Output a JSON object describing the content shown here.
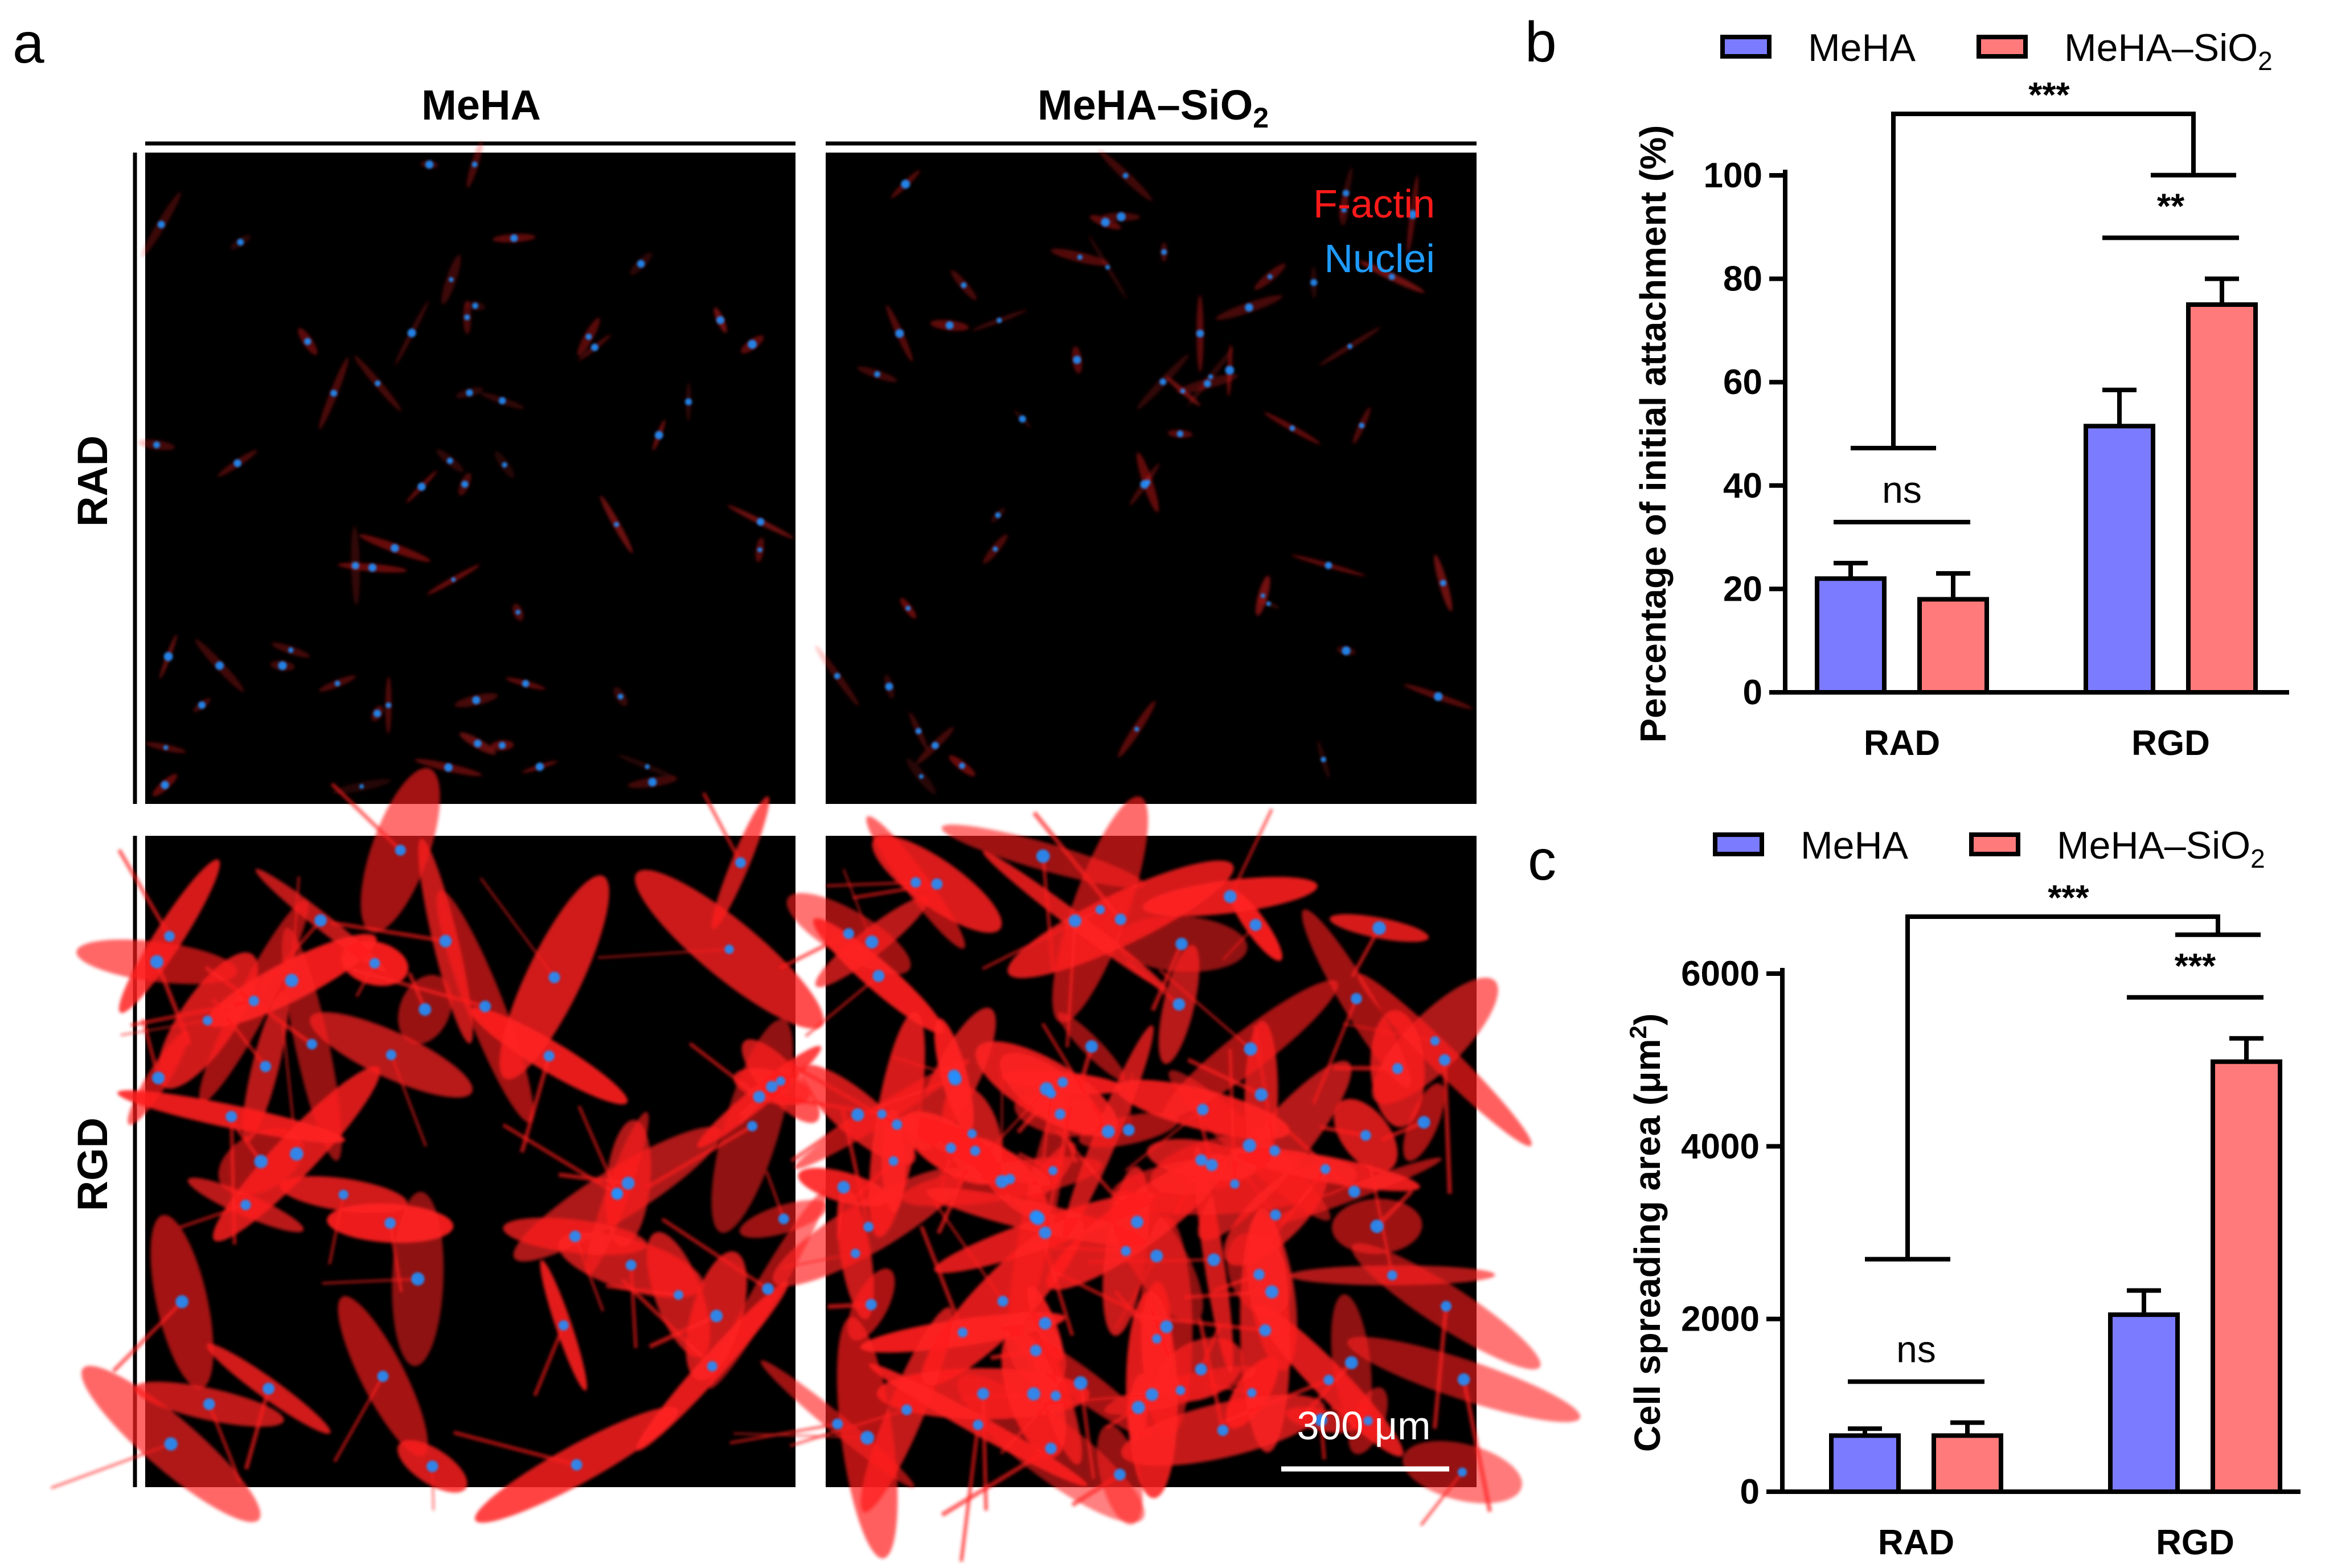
{
  "panel_a": {
    "letter": "a",
    "col_headers": [
      "MeHA",
      "MeHA–SiO2"
    ],
    "row_headers": [
      "RAD",
      "RGD"
    ],
    "stain_legend": {
      "factin": "F-actin",
      "nuclei": "Nuclei"
    },
    "scale_bar": "300 μm",
    "colors": {
      "factin": "#ff2020",
      "nuclei": "#2090ff",
      "background": "#000000"
    }
  },
  "panel_b": {
    "letter": "b"
  },
  "panel_c": {
    "letter": "c"
  },
  "chart_data": [
    {
      "panel": "b",
      "type": "bar",
      "ylabel": "Percentage of initial attachment (%)",
      "categories": [
        "RAD",
        "RGD"
      ],
      "ylim": [
        0,
        100
      ],
      "yticks": [
        0,
        20,
        40,
        60,
        80,
        100
      ],
      "series": [
        {
          "name": "MeHA",
          "color": "#7b7bff",
          "values": [
            22,
            51.5
          ],
          "errors": [
            3,
            7
          ]
        },
        {
          "name": "MeHA–SiO2",
          "color": "#ff7b7b",
          "values": [
            18,
            75
          ],
          "errors": [
            5,
            5
          ]
        }
      ],
      "legend": [
        "MeHA",
        "MeHA–SiO2"
      ],
      "legend_position": "top",
      "annotations": [
        "ns",
        "**",
        "***"
      ]
    },
    {
      "panel": "c",
      "type": "bar",
      "ylabel": "Cell spreading area (μm2)",
      "categories": [
        "RAD",
        "RGD"
      ],
      "ylim": [
        0,
        6000
      ],
      "yticks": [
        0,
        2000,
        4000,
        6000
      ],
      "series": [
        {
          "name": "MeHA",
          "color": "#7b7bff",
          "values": [
            650,
            2050
          ],
          "errors": [
            80,
            280
          ]
        },
        {
          "name": "MeHA–SiO2",
          "color": "#ff7b7b",
          "values": [
            650,
            4980
          ],
          "errors": [
            150,
            270
          ]
        }
      ],
      "legend": [
        "MeHA",
        "MeHA–SiO2"
      ],
      "legend_position": "top",
      "annotations": [
        "ns",
        "***",
        "***"
      ]
    }
  ]
}
